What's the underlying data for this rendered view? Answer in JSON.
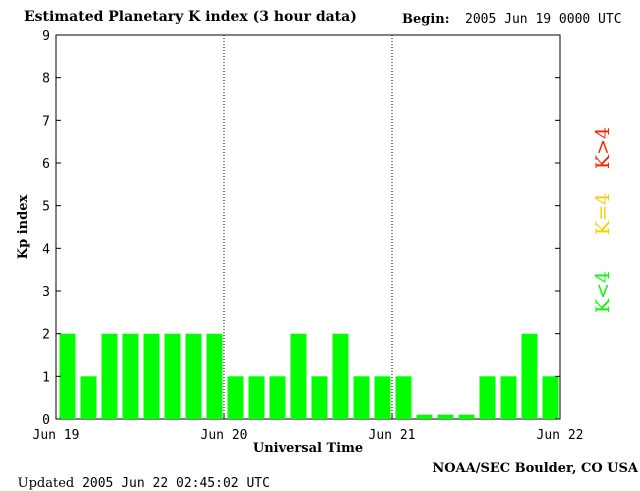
{
  "header": {
    "title": "Estimated Planetary K index (3 hour data)",
    "begin_label": "Begin:",
    "begin_value": "2005 Jun 19 0000 UTC"
  },
  "footer": {
    "updated_label": "Updated",
    "updated_value": "2005 Jun 22 02:45:02 UTC",
    "credit": "NOAA/SEC Boulder, CO USA"
  },
  "legend": [
    {
      "label": "K>4",
      "color": "#ff2200"
    },
    {
      "label": "K=4",
      "color": "#ffcc00"
    },
    {
      "label": "K<4",
      "color": "#00ff00"
    }
  ],
  "chart_data": {
    "type": "bar",
    "title": "Estimated Planetary K index (3 hour data)",
    "xlabel": "Universal Time",
    "ylabel": "Kp index",
    "ylim": [
      0,
      9
    ],
    "yticks": [
      "0",
      "1",
      "2",
      "3",
      "4",
      "5",
      "6",
      "7",
      "8",
      "9"
    ],
    "day_labels": [
      "Jun 19",
      "Jun 20",
      "Jun 21",
      "Jun 22"
    ],
    "bars_per_day": 8,
    "values": [
      2,
      1,
      2,
      2,
      2,
      2,
      2,
      2,
      1,
      1,
      1,
      2,
      1,
      2,
      1,
      1,
      1,
      0.1,
      0.1,
      0.1,
      1,
      1,
      2,
      1
    ],
    "day_separators": "dotted vertical lines",
    "bar_color": "#00ff00"
  }
}
